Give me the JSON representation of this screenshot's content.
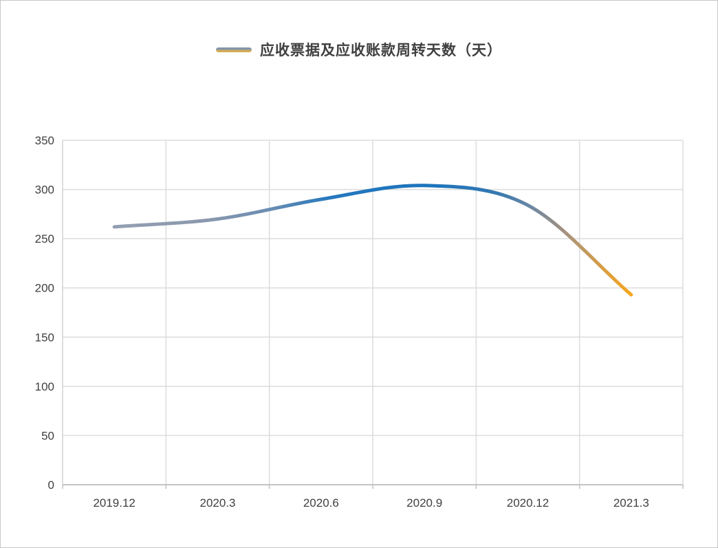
{
  "chart_data": {
    "type": "line",
    "title": "应收票据及应收账款周转天数（天）",
    "x": [
      "2019.12",
      "2020.3",
      "2020.6",
      "2020.9",
      "2020.12",
      "2021.3"
    ],
    "series": [
      {
        "name": "应收票据及应收账款周转天数（天）",
        "values": [
          262,
          270,
          290,
          304,
          284,
          193
        ]
      }
    ],
    "ylim": [
      0,
      350
    ],
    "yticks": [
      0,
      50,
      100,
      150,
      200,
      250,
      300,
      350
    ],
    "grid": true,
    "legend_position": "top-center",
    "line_style": "smooth spline, stroke gradient gray → blue → gray → orange along x"
  },
  "colors": {
    "series_gray": "#8A98AD",
    "series_blue": "#1D74BC",
    "series_orange": "#F7A71E",
    "grid": "#DCDCDC",
    "axis": "#C3C3C3",
    "text": "#404040",
    "legend_marker_top": "#8395AC",
    "legend_marker_bottom": "#D4AC55",
    "background": "#FFFFFF"
  }
}
